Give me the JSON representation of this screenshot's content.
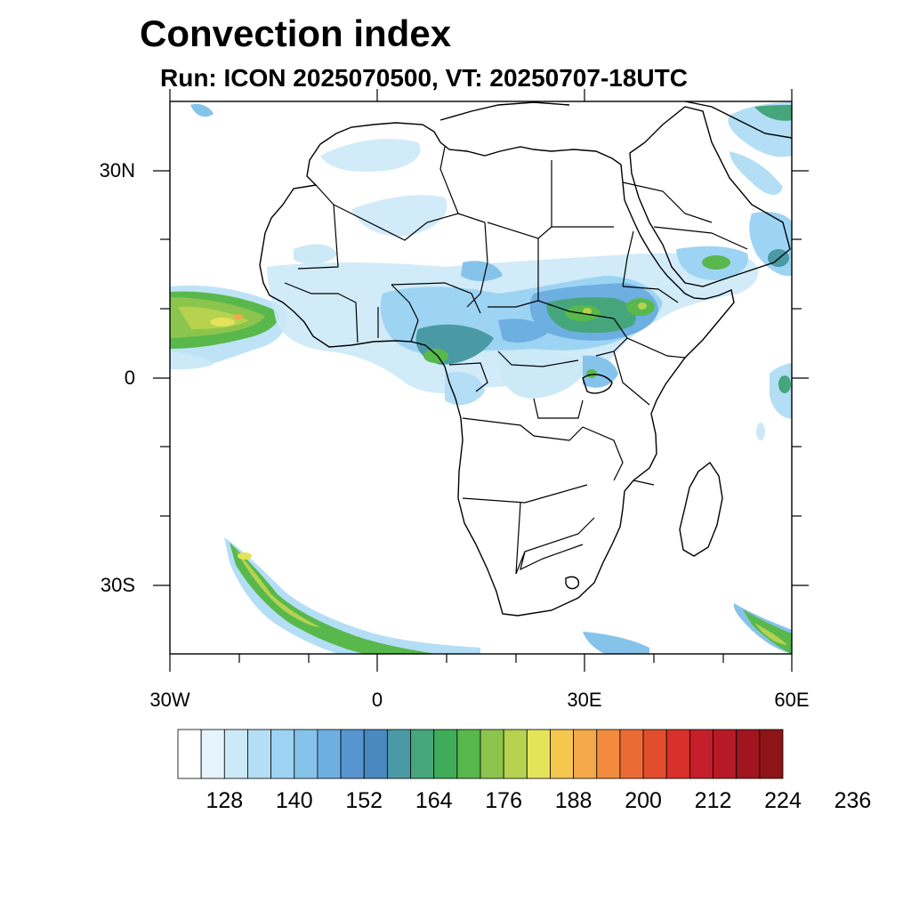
{
  "title": "Convection index",
  "subtitle": "Run: ICON 2025070500,  VT: 20250707-18UTC",
  "map": {
    "lon_range": [
      -30,
      60
    ],
    "lat_range": [
      -40,
      40
    ],
    "lat_labels": [
      {
        "lat": 30,
        "text": "30N"
      },
      {
        "lat": 0,
        "text": "0"
      },
      {
        "lat": -30,
        "text": "30S"
      }
    ],
    "lon_labels": [
      {
        "lon": -30,
        "text": "30W"
      },
      {
        "lon": 0,
        "text": "0"
      },
      {
        "lon": 30,
        "text": "30E"
      },
      {
        "lon": 60,
        "text": "60E"
      }
    ]
  },
  "colorbar": {
    "colors": [
      "#ffffff",
      "#e6f4fc",
      "#cce9f8",
      "#b3def5",
      "#9dd4f3",
      "#86c3ea",
      "#6eafe2",
      "#5795d0",
      "#4a88c0",
      "#4a9aa6",
      "#45a67c",
      "#3eac58",
      "#58b84b",
      "#8cc54e",
      "#b6d24f",
      "#e5e35a",
      "#f5c74f",
      "#f4a84a",
      "#f18b3d",
      "#ec6b34",
      "#e24e2d",
      "#d8302a",
      "#c41f2a",
      "#b51a26",
      "#a0151e",
      "#8e1418"
    ],
    "labels": [
      "128",
      "140",
      "152",
      "164",
      "176",
      "188",
      "200",
      "212",
      "224",
      "236"
    ]
  },
  "convection_regions": [
    {
      "name": "tropical atlantic plume",
      "intensity": "high"
    },
    {
      "name": "sahel band",
      "intensity": "moderate"
    },
    {
      "name": "east africa highlands",
      "intensity": "moderate"
    },
    {
      "name": "south atlantic frontal band",
      "intensity": "high"
    }
  ]
}
